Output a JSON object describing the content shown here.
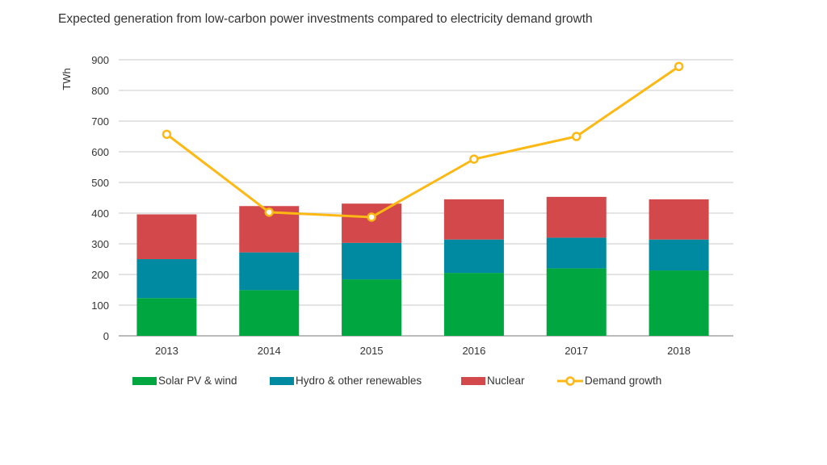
{
  "chart_data": {
    "type": "bar",
    "stacked": true,
    "title": "Expected generation from low-carbon power investments compared to electricity demand growth",
    "ylabel": "TWh",
    "xlabel": "",
    "ylim": [
      0,
      900
    ],
    "yticks": [
      0,
      100,
      200,
      300,
      400,
      500,
      600,
      700,
      800,
      900
    ],
    "grid": true,
    "legend_position": "bottom",
    "categories": [
      "2013",
      "2014",
      "2015",
      "2016",
      "2017",
      "2018"
    ],
    "series": [
      {
        "name": "Solar PV & wind",
        "type": "bar",
        "color": "#00a63f",
        "values": [
          123,
          149,
          184,
          205,
          220,
          213
        ]
      },
      {
        "name": "Hydro & other renewables",
        "type": "bar",
        "color": "#008aa1",
        "values": [
          127,
          123,
          119,
          109,
          100,
          101
        ]
      },
      {
        "name": "Nuclear",
        "type": "bar",
        "color": "#d2484b",
        "values": [
          146,
          151,
          128,
          131,
          133,
          131
        ]
      },
      {
        "name": "Demand growth",
        "type": "line",
        "color": "#fdb813",
        "values": [
          657,
          403,
          387,
          576,
          650,
          878
        ]
      }
    ]
  }
}
